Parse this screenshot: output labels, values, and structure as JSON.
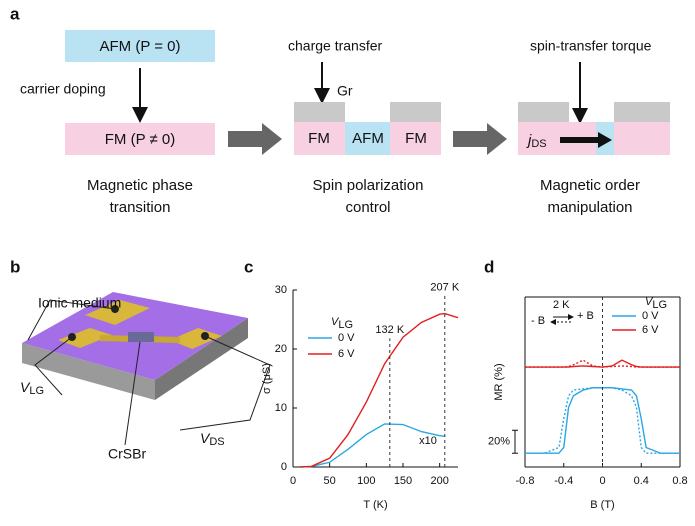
{
  "panel_labels": [
    "a",
    "b",
    "c",
    "d"
  ],
  "panel_a": {
    "afm_box": "AFM (P = 0)",
    "carrier_doping": "carrier doping",
    "fm_box": "FM (P ≠ 0)",
    "caption_1": [
      "Magnetic phase",
      "transition"
    ],
    "charge_transfer": "charge transfer",
    "gr": "Gr",
    "middle_blocks": [
      "FM",
      "AFM",
      "FM"
    ],
    "caption_2": [
      "Spin polarization",
      "control"
    ],
    "spin_transfer_torque": "spin-transfer torque",
    "current": {
      "main": "j",
      "sub": "DS"
    },
    "caption_3": [
      "Magnetic order",
      "manipulation"
    ]
  },
  "panel_b": {
    "ionic_medium": "Ionic medium",
    "gate_voltage": {
      "main": "V",
      "sub": "LG"
    },
    "material": "CrSBr",
    "drain_voltage": {
      "main": "V",
      "sub": "DS"
    }
  },
  "chart_data": [
    {
      "type": "line",
      "ylabel": "σ (μS)",
      "xlabel": "T (K)",
      "xlim": [
        0,
        225
      ],
      "xticks": [
        0,
        50,
        100,
        150,
        200
      ],
      "ylim": [
        0,
        30
      ],
      "yticks": [
        0,
        10,
        20,
        30
      ],
      "legend_title": {
        "main": "V",
        "sub": "LG"
      },
      "legend": "upper left",
      "x": [
        10,
        25,
        50,
        75,
        100,
        125,
        150,
        175,
        200,
        207,
        225
      ],
      "series": [
        {
          "name": "0 V",
          "color": "#2ba6e3",
          "values": [
            0,
            0.1,
            0.8,
            3,
            5.5,
            7.3,
            7.2,
            6,
            5.3,
            5.2,
            null
          ]
        },
        {
          "name": "6 V",
          "color": "#e02020",
          "values": [
            0,
            0.1,
            1.5,
            5.5,
            11,
            17.5,
            22,
            24.5,
            25.9,
            26,
            25.3
          ]
        }
      ],
      "annotations": [
        {
          "x": 207,
          "label": "207 K"
        },
        {
          "x": 132,
          "label": "132 K"
        }
      ],
      "scale_note": "x10"
    },
    {
      "type": "line",
      "ylabel": "MR (%)",
      "xlabel": "B (T)",
      "xlim": [
        -0.8,
        0.8
      ],
      "xticks": [
        -0.8,
        -0.4,
        0,
        0.4,
        0.8
      ],
      "ylim": [
        -12,
        136
      ],
      "temperature": "2 K",
      "sweep": [
        "- B",
        "+ B"
      ],
      "legend_title": {
        "main": "V",
        "sub": "LG"
      },
      "legend": "upper right",
      "x": [
        -0.8,
        -0.6,
        -0.45,
        -0.4,
        -0.35,
        -0.3,
        -0.2,
        -0.1,
        0,
        0.1,
        0.2,
        0.3,
        0.35,
        0.4,
        0.45,
        0.6,
        0.8
      ],
      "series": [
        {
          "name": "0 V",
          "color": "#2ba6e3",
          "values": [
            0,
            0,
            0,
            5,
            40,
            50,
            55,
            57,
            57,
            57,
            56,
            55,
            50,
            30,
            5,
            0,
            0
          ],
          "values_reverse": [
            0,
            0,
            5,
            30,
            50,
            55,
            56,
            57,
            57,
            57,
            55,
            50,
            40,
            5,
            0,
            0,
            0
          ]
        },
        {
          "name": "6 V",
          "color": "#e02020",
          "values": [
            75,
            75,
            75,
            75,
            75,
            75.5,
            76,
            75.5,
            75,
            76,
            81,
            77,
            75.5,
            75,
            75,
            75,
            75
          ],
          "values_reverse": [
            75,
            75,
            75,
            75,
            75.5,
            77,
            81,
            76,
            75,
            75.5,
            76,
            75.5,
            75,
            75,
            75,
            75,
            75
          ]
        }
      ],
      "scale_bar": {
        "value": 20,
        "label": "20%"
      }
    }
  ]
}
